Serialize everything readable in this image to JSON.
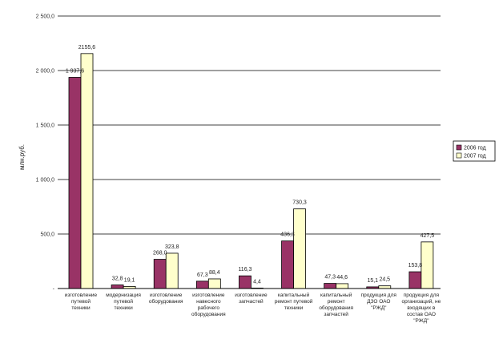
{
  "chart_data": {
    "type": "bar",
    "title": "",
    "xlabel": "",
    "ylabel": "млн.руб.",
    "ylim": [
      0,
      2500
    ],
    "ytick_labels": [
      "-",
      "500,0",
      "1 000,0",
      "1 500,0",
      "2 000,0",
      "2 500,0"
    ],
    "grid": true,
    "legend_position": "right",
    "categories": [
      [
        "изготовление",
        "путевой",
        "техники"
      ],
      [
        "модернизация",
        "путевой",
        "техники"
      ],
      [
        "изготовление",
        "оборудования"
      ],
      [
        "изготовление",
        "навесного",
        "рабочего",
        "оборудования"
      ],
      [
        "изготовление",
        "запчастей"
      ],
      [
        "капитальный",
        "ремонт путевой",
        "техники"
      ],
      [
        "капитальный",
        "ремонт",
        "оборудования",
        "запчастей"
      ],
      [
        "продукция для",
        "ДЗО ОАО",
        "\"РЖД\""
      ],
      [
        "продукция для",
        "организаций, не",
        "входящих в",
        "состав ОАО",
        "\"РЖД\""
      ]
    ],
    "series": [
      {
        "name": "2006 год",
        "color": "#993366",
        "values": [
          1937.6,
          32.8,
          268.0,
          67.3,
          116.3,
          436.3,
          47.3,
          15.1,
          153.8
        ],
        "labels": [
          "1 937,6",
          "32,8",
          "268,0",
          "67,3",
          "116,3",
          "436,3",
          "47,3",
          "15,1",
          "153,8"
        ]
      },
      {
        "name": "2007 год",
        "color": "#FFFFCC",
        "values": [
          2155.6,
          19.1,
          323.8,
          88.4,
          4.4,
          730.3,
          44.6,
          24.5,
          427.5
        ],
        "labels": [
          "2155,6",
          "19,1",
          "323,8",
          "88,4",
          "4,4",
          "730,3",
          "44,6",
          "24,5",
          "427,5"
        ]
      }
    ]
  }
}
